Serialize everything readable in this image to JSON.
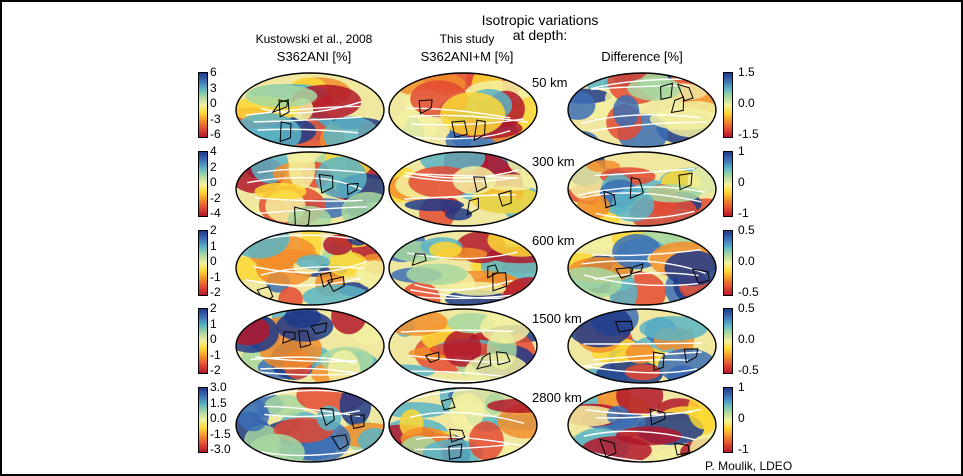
{
  "titles": {
    "main_line1": "Isotropic variations",
    "main_line2": "at depth:",
    "col1_ref": "Kustowski et al., 2008",
    "col1_label": "S362ANI [%]",
    "col2_ref": "This study",
    "col2_label": "S362ANI+M [%]",
    "col3_label": "Difference [%]"
  },
  "colors": {
    "scale": [
      "#b2182b",
      "#e34a33",
      "#f28e2c",
      "#fdd835",
      "#f3f0a0",
      "#a8d8a0",
      "#5ab4c6",
      "#3b6fb5",
      "#1f3a8a"
    ]
  },
  "rows": [
    {
      "depth": "50 km",
      "left_ticks": [
        "6",
        "3",
        "0",
        "-3",
        "-6"
      ],
      "right_ticks": [
        "1.5",
        "0.0",
        "-1.5"
      ],
      "right_tick_pos": [
        0,
        0.5,
        1
      ]
    },
    {
      "depth": "300 km",
      "left_ticks": [
        "4",
        "2",
        "0",
        "-2",
        "-4"
      ],
      "right_ticks": [
        "1",
        "0",
        "-1"
      ],
      "right_tick_pos": [
        0,
        0.5,
        1
      ]
    },
    {
      "depth": "600 km",
      "left_ticks": [
        "2",
        "1",
        "0",
        "-1",
        "-2"
      ],
      "right_ticks": [
        "0.5",
        "0.0",
        "-0.5"
      ],
      "right_tick_pos": [
        0,
        0.5,
        1
      ]
    },
    {
      "depth": "1500 km",
      "left_ticks": [
        "2",
        "1",
        "0",
        "-1",
        "-2"
      ],
      "right_ticks": [
        "0.5",
        "0.0",
        "-0.5"
      ],
      "right_tick_pos": [
        0,
        0.5,
        1
      ]
    },
    {
      "depth": "2800 km",
      "left_ticks": [
        "3.0",
        "1.5",
        "0.0",
        "-1.5",
        "-3.0"
      ],
      "right_ticks": [
        "1",
        "0",
        "-1"
      ],
      "right_tick_pos": [
        0,
        0.5,
        1
      ]
    }
  ],
  "credit": "P. Moulik, LDEO"
}
